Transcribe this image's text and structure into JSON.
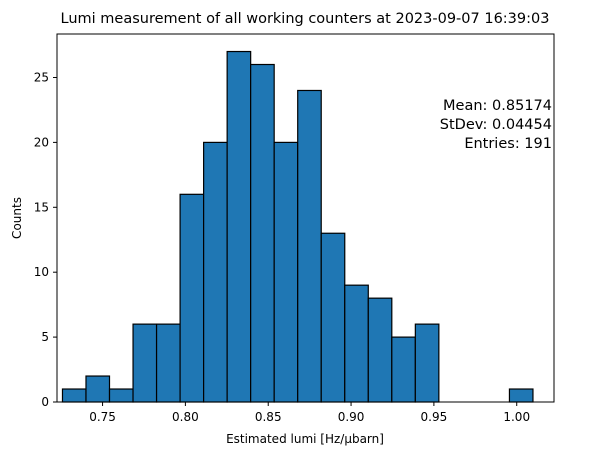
{
  "chart_data": {
    "type": "bar",
    "title": "Lumi measurement of all working counters at 2023-09-07 16:39:03",
    "xlabel": "Estimated lumi [Hz/μbarn]",
    "ylabel": "Counts",
    "xlim": [
      0.7225,
      1.0225
    ],
    "ylim": [
      0,
      28.35
    ],
    "xticks": [
      0.75,
      0.8,
      0.85,
      0.9,
      0.95,
      1.0
    ],
    "xtick_labels": [
      "0.75",
      "0.80",
      "0.85",
      "0.90",
      "0.95",
      "1.00"
    ],
    "yticks": [
      0,
      5,
      10,
      15,
      20,
      25
    ],
    "ytick_labels": [
      "0",
      "5",
      "10",
      "15",
      "20",
      "25"
    ],
    "bar_color": "#1f77b4",
    "edge_color": "#000000",
    "bin_edges": [
      0.7258,
      0.74,
      0.7542,
      0.7684,
      0.7826,
      0.7968,
      0.811,
      0.8252,
      0.8394,
      0.8536,
      0.8678,
      0.882,
      0.8962,
      0.9104,
      0.9246,
      0.9388,
      0.953,
      0.9672,
      0.9814,
      0.9956,
      1.0098
    ],
    "values": [
      1,
      2,
      1,
      6,
      6,
      16,
      20,
      27,
      26,
      20,
      24,
      13,
      9,
      8,
      5,
      6,
      0,
      0,
      0,
      1
    ],
    "grid": false,
    "stats_lines": [
      "Mean: 0.85174",
      "StDev: 0.04454",
      "Entries: 191"
    ]
  }
}
